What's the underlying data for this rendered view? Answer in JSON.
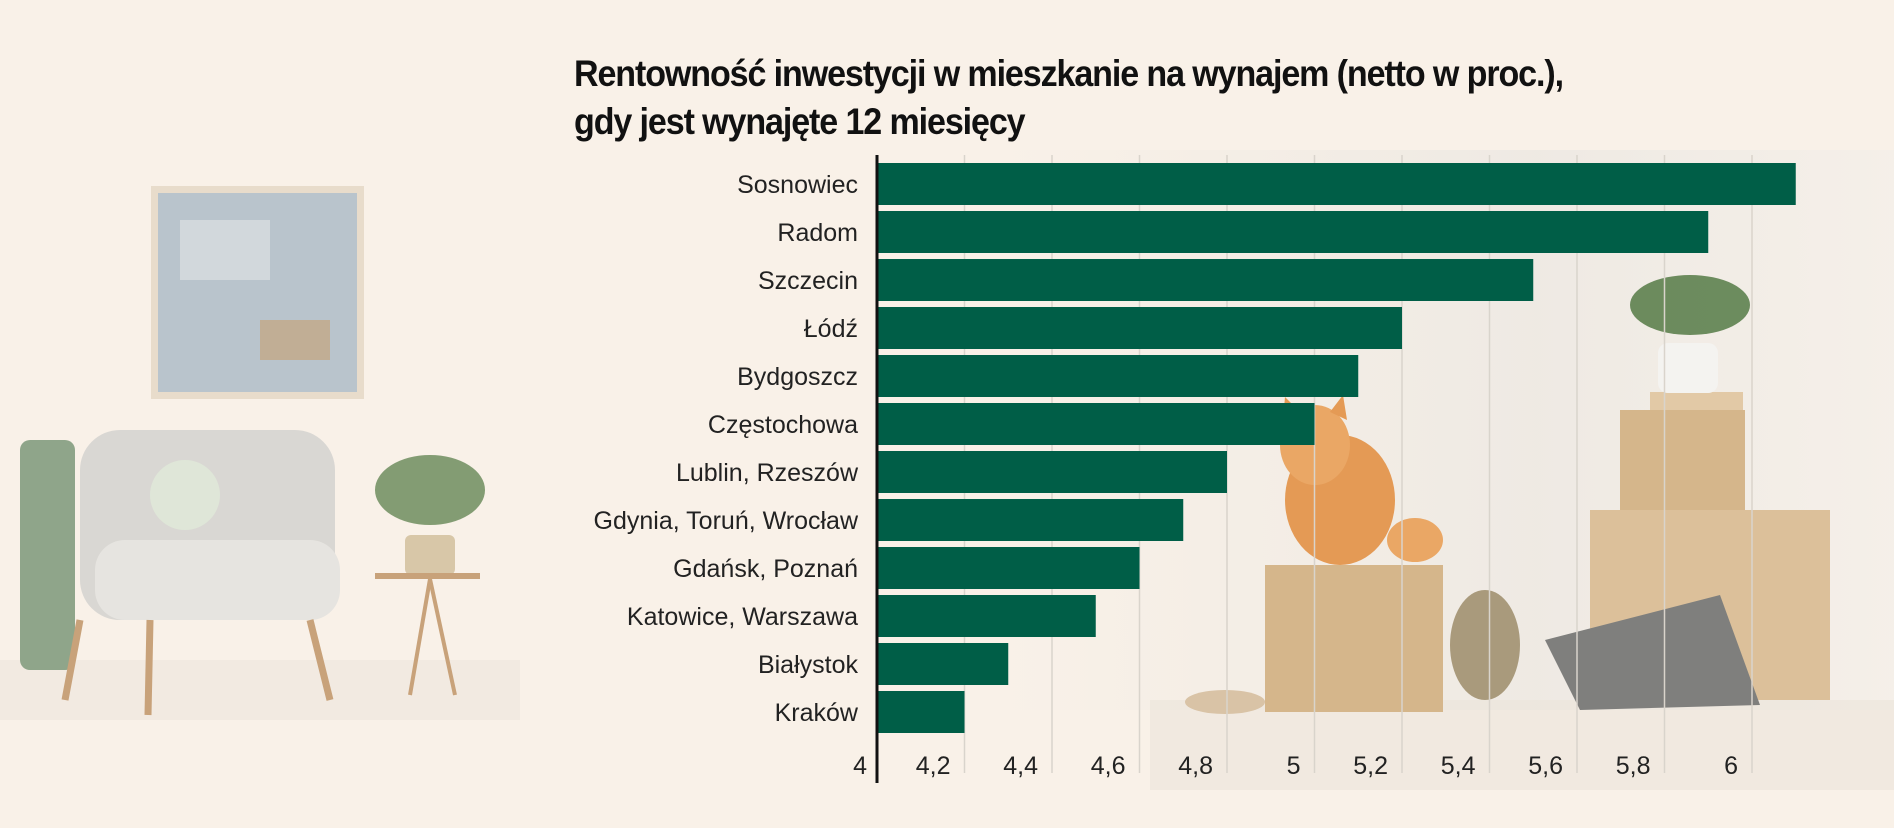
{
  "chart_data": {
    "type": "bar",
    "orientation": "horizontal",
    "title": "Rentowność inwestycji w mieszkanie na wynajem (netto w proc.), gdy jest wynajęte 12 miesięcy",
    "title_lines": [
      "Rentowność inwestycji w mieszkanie na wynajem (netto w proc.),",
      "gdy jest wynajęte 12 miesięcy"
    ],
    "categories": [
      "Sosnowiec",
      "Radom",
      "Szczecin",
      "Łódź",
      "Bydgoszcz",
      "Częstochowa",
      "Lublin, Rzeszów",
      "Gdynia, Toruń, Wrocław",
      "Gdańsk, Poznań",
      "Katowice, Warszawa",
      "Białystok",
      "Kraków"
    ],
    "values": [
      6.1,
      5.9,
      5.5,
      5.2,
      5.1,
      5.0,
      4.8,
      4.7,
      4.6,
      4.5,
      4.3,
      4.2
    ],
    "xlim": [
      4,
      6.2
    ],
    "xticks": [
      4,
      4.2,
      4.4,
      4.6,
      4.8,
      5,
      5.2,
      5.4,
      5.6,
      5.8,
      6
    ],
    "xtick_labels": [
      "4",
      "4,2",
      "4,4",
      "4,6",
      "4,8",
      "5",
      "5,2",
      "5,4",
      "5,6",
      "5,8",
      "6"
    ],
    "grid": true,
    "bar_color": "#005e47",
    "background_color": "#f9f1e8"
  }
}
